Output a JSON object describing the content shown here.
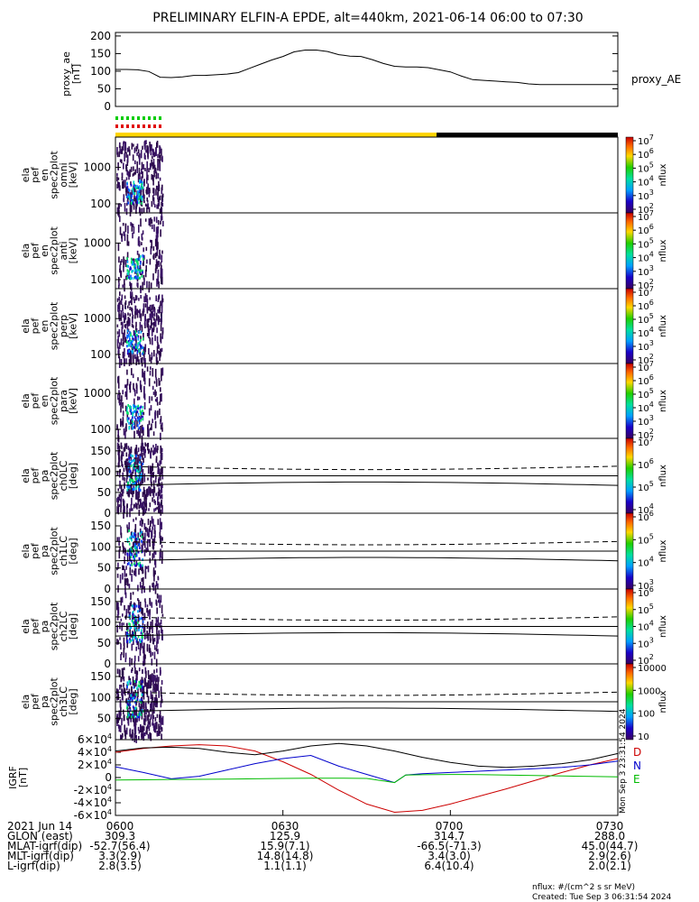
{
  "title": "PRELIMINARY ELFIN-A EPDE, alt=440km, 2021-06-14 06:00 to 07:30",
  "chart_data": [
    {
      "type": "line",
      "panel": "proxy_ae",
      "ylabel_lines": [
        "proxy_ae",
        "[nT]"
      ],
      "legend": "proxy_AE",
      "ylim": [
        0,
        210
      ],
      "yticks": [
        "200",
        "150",
        "100",
        "50",
        "0"
      ],
      "series": [
        {
          "x": [
            0,
            2,
            4,
            6,
            8,
            10,
            12,
            14,
            16,
            18,
            20,
            22,
            24,
            26,
            28,
            30,
            32,
            34,
            36,
            38,
            40,
            42,
            44,
            46,
            48,
            50,
            52,
            54,
            56,
            58,
            60,
            62,
            64,
            66,
            68,
            70,
            72,
            74,
            76,
            78,
            80,
            82,
            84,
            86,
            88,
            90
          ],
          "values": [
            105,
            105,
            104,
            99,
            83,
            82,
            84,
            88,
            88,
            90,
            92,
            96,
            108,
            120,
            132,
            142,
            155,
            160,
            160,
            156,
            147,
            143,
            142,
            133,
            122,
            114,
            112,
            112,
            110,
            104,
            98,
            86,
            76,
            74,
            72,
            70,
            68,
            64,
            62,
            62,
            62,
            62,
            62,
            62,
            62,
            62
          ]
        }
      ]
    },
    {
      "type": "heatmap",
      "panels": [
        {
          "ylabel_lines": [
            "ela",
            "pef",
            "en",
            "spec2plot",
            "omni",
            "[keV]"
          ],
          "yticks": [
            "1000",
            "100"
          ]
        },
        {
          "ylabel_lines": [
            "ela",
            "pef",
            "en",
            "spec2plot",
            "anti",
            "[keV]"
          ],
          "yticks": [
            "1000",
            "100"
          ]
        },
        {
          "ylabel_lines": [
            "ela",
            "pef",
            "en",
            "spec2plot",
            "perp",
            "[keV]"
          ],
          "yticks": [
            "1000",
            "100"
          ]
        },
        {
          "ylabel_lines": [
            "ela",
            "pef",
            "en",
            "spec2plot",
            "para",
            "[keV]"
          ],
          "yticks": [
            "1000",
            "100"
          ]
        }
      ],
      "colorbar": {
        "label": "nflux",
        "ticks": [
          "10^7",
          "10^6",
          "10^5",
          "10^4",
          "10^3",
          "10^2"
        ]
      }
    },
    {
      "type": "heatmap",
      "panels": [
        {
          "ylabel_lines": [
            "ela",
            "pef",
            "pa",
            "spec2plot",
            "ch0LC",
            "[deg]"
          ],
          "yticks": [
            "150",
            "100",
            "50",
            "0"
          ],
          "cb_ticks": [
            "10^7",
            "10^6",
            "10^5",
            "10^4"
          ]
        },
        {
          "ylabel_lines": [
            "ela",
            "pef",
            "pa",
            "spec2plot",
            "ch1LC",
            "[deg]"
          ],
          "yticks": [
            "150",
            "100",
            "50",
            "0"
          ],
          "cb_ticks": [
            "10^6",
            "10^5",
            "10^4",
            "10^3"
          ]
        },
        {
          "ylabel_lines": [
            "ela",
            "pef",
            "pa",
            "spec2plot",
            "ch2LC",
            "[deg]"
          ],
          "yticks": [
            "150",
            "100",
            "50",
            "0"
          ],
          "cb_ticks": [
            "10^6",
            "10^5",
            "10^4",
            "10^3",
            "10^2"
          ]
        },
        {
          "ylabel_lines": [
            "ela",
            "pef",
            "pa",
            "spec2plot",
            "ch3LC",
            "[deg]"
          ],
          "yticks": [
            "150",
            "100",
            "50"
          ],
          "cb_ticks": [
            "10000",
            "1000",
            "100",
            "10"
          ]
        }
      ],
      "colorbar": {
        "label": "nflux"
      },
      "loss_cone_deg": [
        67,
        113
      ],
      "reference_deg": 90
    },
    {
      "type": "line",
      "panel": "igrf",
      "ylabel_lines": [
        "IGRF",
        "[nT]"
      ],
      "ylim": [
        -60000,
        60000
      ],
      "yticks": [
        {
          "m": "6",
          "e": "4",
          "sign": ""
        },
        {
          "m": "4",
          "e": "4",
          "sign": ""
        },
        {
          "m": "2",
          "e": "4",
          "sign": ""
        },
        {
          "m": "0",
          "e": "",
          "sign": ""
        },
        {
          "m": "2",
          "e": "4",
          "sign": "-"
        },
        {
          "m": "4",
          "e": "4",
          "sign": "-"
        },
        {
          "m": "6",
          "e": "4",
          "sign": "-"
        }
      ],
      "series": [
        {
          "name": "D",
          "color": "#cc0000",
          "x": [
            0,
            5,
            10,
            15,
            20,
            25,
            30,
            35,
            40,
            45,
            50,
            55,
            60,
            65,
            70,
            75,
            80,
            85,
            90
          ],
          "values": [
            40000,
            46000,
            50000,
            52000,
            50000,
            42000,
            25000,
            5000,
            -20000,
            -42000,
            -55000,
            -52000,
            -42000,
            -30000,
            -18000,
            -5000,
            8000,
            20000,
            30000
          ]
        },
        {
          "name": "N",
          "color": "#0000cc",
          "x": [
            0,
            5,
            10,
            15,
            20,
            25,
            30,
            35,
            40,
            45,
            50,
            52,
            55,
            60,
            65,
            70,
            75,
            80,
            85,
            90
          ],
          "values": [
            17000,
            8000,
            -2000,
            2000,
            12000,
            22000,
            30000,
            35000,
            18000,
            5000,
            -8000,
            4000,
            6000,
            8000,
            10000,
            12000,
            14000,
            16000,
            20000,
            26000
          ]
        },
        {
          "name": "E",
          "color": "#00bb00",
          "x": [
            0,
            5,
            10,
            15,
            20,
            25,
            30,
            35,
            40,
            45,
            50,
            52,
            55,
            60,
            65,
            70,
            75,
            80,
            85,
            90
          ],
          "values": [
            -4000,
            -3500,
            -3000,
            -2800,
            -2500,
            -2000,
            -1500,
            -1000,
            -1000,
            -1500,
            -8000,
            4000,
            4500,
            4800,
            4600,
            4000,
            3200,
            2500,
            1800,
            1200
          ]
        },
        {
          "name": "",
          "color": "#000000",
          "x": [
            0,
            5,
            10,
            15,
            20,
            25,
            30,
            35,
            40,
            45,
            50,
            55,
            60,
            65,
            70,
            75,
            80,
            85,
            90
          ],
          "values": [
            42000,
            47000,
            48000,
            46000,
            40000,
            36000,
            42000,
            50000,
            54000,
            50000,
            42000,
            32000,
            24000,
            18000,
            16000,
            18000,
            22000,
            28000,
            38000
          ]
        }
      ],
      "side_label": "Mon Sep  3 23:31:54 2024"
    }
  ],
  "footer": {
    "rows": [
      {
        "label": "2021 Jun 14",
        "values": [
          "0600",
          "0630",
          "0700",
          "0730"
        ]
      },
      {
        "label": "GLON (east)",
        "values": [
          "309.3",
          "125.9",
          "314.7",
          "288.0"
        ]
      },
      {
        "label": "MLAT-igrf(dip)",
        "values": [
          "-52.7(56.4)",
          "15.9(7.1)",
          "-66.5(-71.3)",
          "45.0(44.7)"
        ]
      },
      {
        "label": "MLT-igrf(dip)",
        "values": [
          "3.3(2.9)",
          "14.8(14.8)",
          "3.4(3.0)",
          "2.9(2.6)"
        ]
      },
      {
        "label": "L-igrf(dip)",
        "values": [
          "2.8(3.5)",
          "1.1(1.1)",
          "6.4(10.4)",
          "2.0(2.1)"
        ]
      }
    ],
    "note1": "nflux: #/(cm^2 s sr MeV)",
    "note2": "Created: Tue Sep  3 06:31:54 2024"
  },
  "status_bar": {
    "colors": [
      "#ffd400",
      "#000000"
    ],
    "fill_fraction_yellow": 0.63,
    "marker_rows": [
      "#00cc00",
      "#e00000"
    ]
  }
}
